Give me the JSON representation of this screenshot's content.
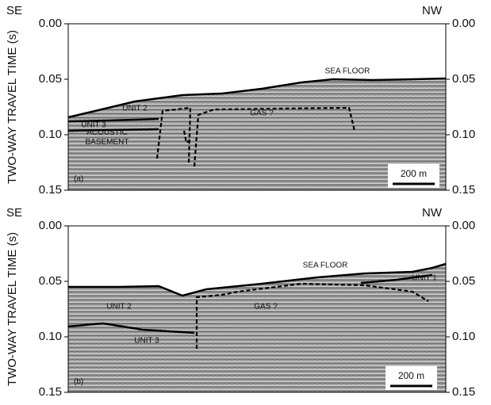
{
  "panels": [
    {
      "id": "(a)",
      "left_label": "SE",
      "right_label": "NW",
      "y_axis_label": "TWO-WAY TRAVEL TIME (s)",
      "ylim": [
        0,
        0.15
      ],
      "yticks": [
        {
          "value": 0,
          "label": "0.00"
        },
        {
          "value": 0.05,
          "label": "0.05"
        },
        {
          "value": 0.1,
          "label": "0.10"
        },
        {
          "value": 0.15,
          "label": "0.15"
        }
      ],
      "annotations": [
        "SEA FLOOR",
        "UNIT 2",
        "UNIT 3",
        "ACOUSTIC BASEMENT",
        "GAS ?"
      ],
      "scale_bar": "200 m"
    },
    {
      "id": "(b)",
      "left_label": "SE",
      "right_label": "NW",
      "y_axis_label": "TWO-WAY TRAVEL TIME (s)",
      "ylim": [
        0,
        0.15
      ],
      "yticks": [
        {
          "value": 0,
          "label": "0.00"
        },
        {
          "value": 0.05,
          "label": "0.05"
        },
        {
          "value": 0.1,
          "label": "0.10"
        },
        {
          "value": 0.15,
          "label": "0.15"
        }
      ],
      "annotations": [
        "SEA FLOOR",
        "UNIT 1",
        "UNIT 2",
        "UNIT 3",
        "GAS ?"
      ],
      "scale_bar": "200 m"
    }
  ]
}
